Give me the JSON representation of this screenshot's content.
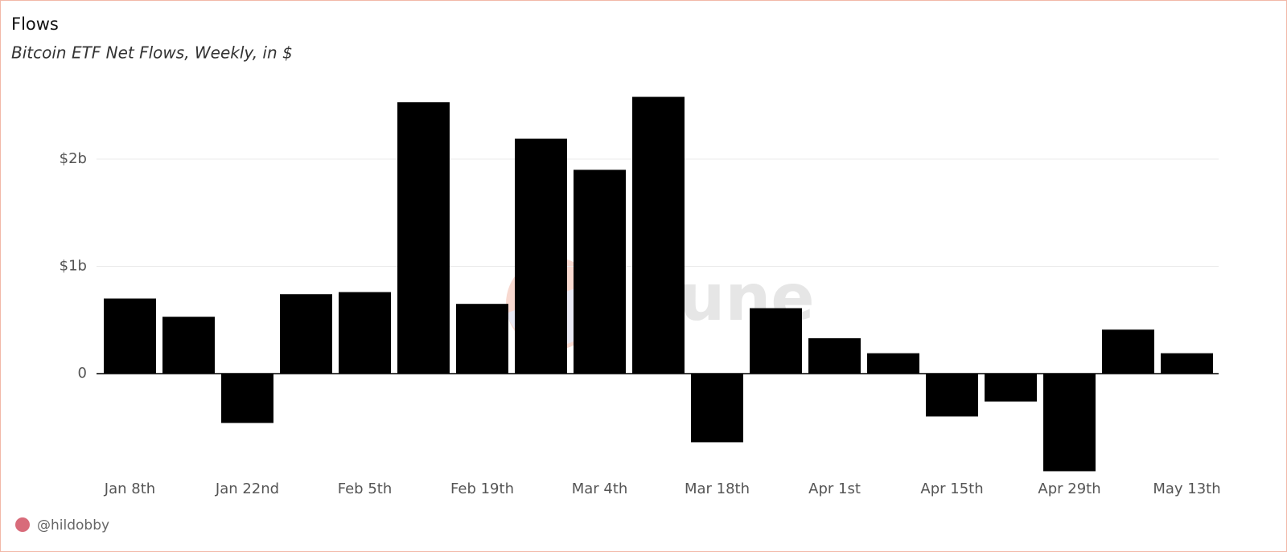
{
  "chart_data": {
    "type": "bar",
    "title": "Flows",
    "subtitle": "Bitcoin ETF Net Flows, Weekly, in $",
    "categories": [
      "Jan 8th",
      null,
      "Jan 22nd",
      null,
      "Feb 5th",
      null,
      "Feb 19th",
      null,
      "Mar 4th",
      null,
      "Mar 18th",
      null,
      "Apr 1st",
      null,
      "Apr 15th",
      null,
      "Apr 29th",
      null,
      "May 13th"
    ],
    "values": [
      700000000,
      530000000,
      -460000000,
      740000000,
      760000000,
      2530000000,
      650000000,
      2190000000,
      1900000000,
      2580000000,
      -640000000,
      610000000,
      330000000,
      190000000,
      -400000000,
      -260000000,
      -910000000,
      410000000,
      190000000
    ],
    "color": "#000000",
    "ylim": [
      -950000000,
      2650000000
    ],
    "yticks": [
      0,
      {
        "value": 1000000000,
        "label": "$1b"
      },
      {
        "value": 2000000000,
        "label": "$2b"
      }
    ],
    "grid": true,
    "watermark": "Dune",
    "author": "@hildobby"
  }
}
